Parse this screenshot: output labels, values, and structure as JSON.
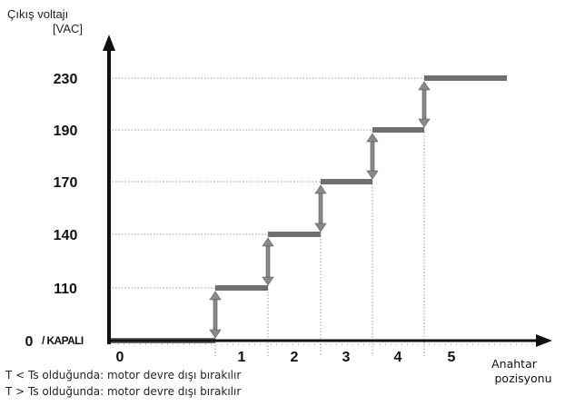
{
  "chart_data": {
    "type": "line",
    "ylabel_line1": "Çıkış voltajı",
    "ylabel_line2": "[VAC]",
    "xlabel_line1": "Anahtar",
    "xlabel_line2": "pozisyonu",
    "y_tick_values": [
      "230",
      "190",
      "170",
      "140",
      "110"
    ],
    "zero_label": "0",
    "off_label": "/ KAPALI",
    "x_tick_labels": [
      "0",
      "1",
      "2",
      "3",
      "4",
      "5"
    ],
    "series": [
      {
        "values": [
          0,
          110,
          140,
          170,
          190,
          230
        ]
      }
    ]
  },
  "notes": {
    "line1": "T < Ts olduğunda: motor devre dışı bırakılır",
    "line2": "T > Ts olduğunda: motor devre dışı bırakılır"
  },
  "colors": {
    "axis": "#111111",
    "step": "#6f6f6f",
    "arrow": "#8a8a8a",
    "grid": "#9a9a9a"
  }
}
